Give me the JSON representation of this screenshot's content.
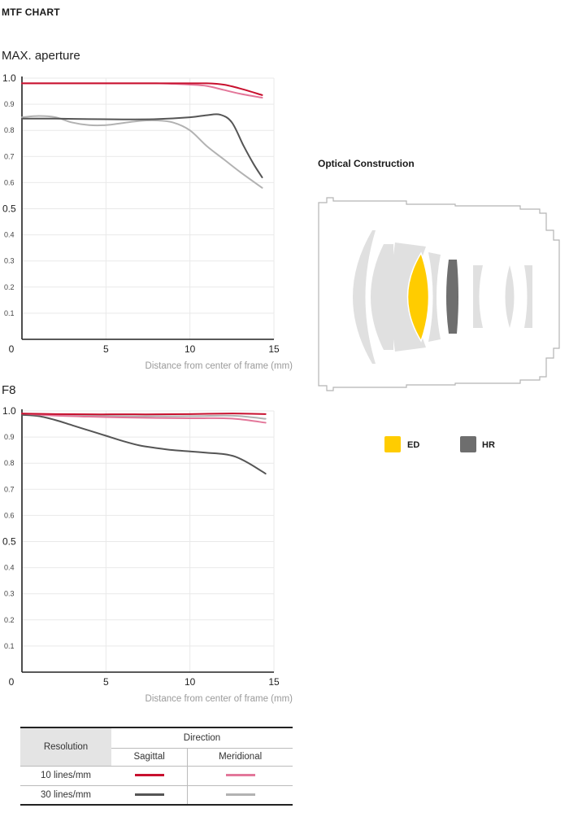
{
  "page_title": "MTF CHART",
  "colors": {
    "sagittal_10": "#c8102e",
    "meridional_10": "#e3779a",
    "sagittal_30": "#555555",
    "meridional_30": "#b2b2b2",
    "ed": "#ffcc00",
    "hr": "#6e6e6e",
    "element_fill": "#e0e0e0"
  },
  "chart_data": [
    {
      "type": "line",
      "title": "MAX. aperture",
      "xlabel": "Distance from center of frame (mm)",
      "xlim": [
        0,
        15
      ],
      "ylim": [
        0,
        1.0
      ],
      "x_ticks": [
        "0",
        "5",
        "10",
        "15"
      ],
      "y_ticks_major": [
        "1.0",
        "0.5"
      ],
      "y_ticks_minor": [
        "0.9",
        "0.8",
        "0.7",
        "0.6",
        "0.4",
        "0.3",
        "0.2",
        "0.1"
      ],
      "grid": true,
      "series": [
        {
          "key": "sagittal_10",
          "x": [
            0,
            2,
            4,
            6,
            8,
            10,
            11,
            12,
            13,
            14.3
          ],
          "y": [
            0.98,
            0.98,
            0.98,
            0.98,
            0.98,
            0.98,
            0.98,
            0.975,
            0.96,
            0.935
          ]
        },
        {
          "key": "meridional_10",
          "x": [
            0,
            2,
            4,
            6,
            8,
            10,
            11,
            12,
            13,
            14.3
          ],
          "y": [
            0.98,
            0.98,
            0.98,
            0.98,
            0.98,
            0.975,
            0.97,
            0.955,
            0.94,
            0.925
          ]
        },
        {
          "key": "sagittal_30",
          "x": [
            0,
            2,
            4,
            6,
            8,
            10,
            11,
            11.8,
            12.5,
            13.2,
            13.8,
            14.3
          ],
          "y": [
            0.845,
            0.845,
            0.843,
            0.842,
            0.843,
            0.85,
            0.858,
            0.86,
            0.83,
            0.74,
            0.67,
            0.62
          ]
        },
        {
          "key": "meridional_30",
          "x": [
            0,
            1,
            2,
            3,
            4,
            5,
            6,
            7,
            8,
            9,
            10,
            11,
            12,
            13,
            14.3
          ],
          "y": [
            0.85,
            0.855,
            0.85,
            0.83,
            0.82,
            0.82,
            0.828,
            0.836,
            0.838,
            0.83,
            0.8,
            0.74,
            0.69,
            0.64,
            0.58
          ]
        }
      ]
    },
    {
      "type": "line",
      "title": "F8",
      "xlabel": "Distance from center of frame (mm)",
      "xlim": [
        0,
        15
      ],
      "ylim": [
        0,
        1.0
      ],
      "x_ticks": [
        "0",
        "5",
        "10",
        "15"
      ],
      "y_ticks_major": [
        "1.0",
        "0.5"
      ],
      "y_ticks_minor": [
        "0.9",
        "0.8",
        "0.7",
        "0.6",
        "0.4",
        "0.3",
        "0.2",
        "0.1"
      ],
      "grid": true,
      "series": [
        {
          "key": "sagittal_10",
          "x": [
            0,
            2,
            4,
            6,
            8,
            10,
            12,
            13,
            14.5
          ],
          "y": [
            0.99,
            0.988,
            0.987,
            0.987,
            0.987,
            0.988,
            0.99,
            0.99,
            0.988
          ]
        },
        {
          "key": "meridional_10",
          "x": [
            0,
            2,
            4,
            6,
            8,
            10,
            12,
            13,
            14.5
          ],
          "y": [
            0.99,
            0.982,
            0.978,
            0.975,
            0.973,
            0.972,
            0.972,
            0.968,
            0.955
          ]
        },
        {
          "key": "sagittal_30",
          "x": [
            0,
            1,
            2,
            3,
            4,
            5,
            6,
            7,
            8,
            9,
            10,
            11,
            12,
            12.7,
            13.5,
            14.5
          ],
          "y": [
            0.985,
            0.98,
            0.965,
            0.945,
            0.925,
            0.905,
            0.885,
            0.868,
            0.858,
            0.85,
            0.845,
            0.84,
            0.835,
            0.825,
            0.8,
            0.76
          ]
        },
        {
          "key": "meridional_30",
          "x": [
            0,
            2,
            4,
            6,
            8,
            10,
            12,
            13,
            14.5
          ],
          "y": [
            0.99,
            0.985,
            0.982,
            0.98,
            0.98,
            0.98,
            0.982,
            0.98,
            0.97
          ]
        }
      ]
    }
  ],
  "optical": {
    "title": "Optical Construction",
    "legend": [
      {
        "label": "ED",
        "color": "#ffcc00"
      },
      {
        "label": "HR",
        "color": "#6e6e6e"
      }
    ]
  },
  "legend_table": {
    "resolution_header": "Resolution",
    "direction_header": "Direction",
    "sagittal": "Sagittal",
    "meridional": "Meridional",
    "rows": [
      "10 lines/mm",
      "30 lines/mm"
    ]
  }
}
